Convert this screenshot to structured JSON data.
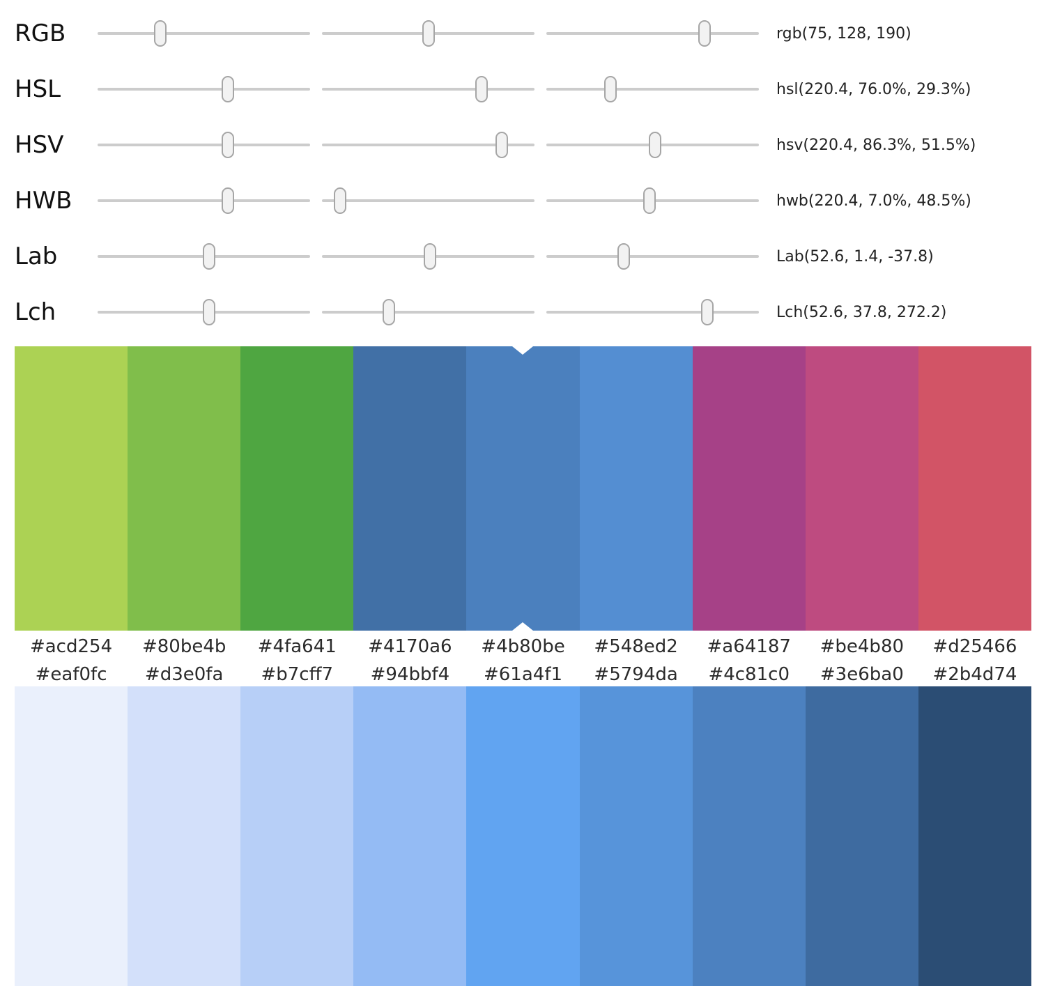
{
  "sliders": {
    "rows": [
      {
        "id": "rgb",
        "label": "RGB",
        "value": "rgb(75, 128, 190)",
        "handle_positions_pct": [
          29.4,
          50.2,
          74.5
        ]
      },
      {
        "id": "hsl",
        "label": "HSL",
        "value": "hsl(220.4, 76.0%, 29.3%)",
        "handle_positions_pct": [
          61.2,
          75.0,
          30.0
        ]
      },
      {
        "id": "hsv",
        "label": "HSV",
        "value": "hsv(220.4, 86.3%, 51.5%)",
        "handle_positions_pct": [
          61.2,
          84.5,
          51.0
        ]
      },
      {
        "id": "hwb",
        "label": "HWB",
        "value": "hwb(220.4, 7.0%, 48.5%)",
        "handle_positions_pct": [
          61.2,
          8.5,
          48.5
        ]
      },
      {
        "id": "lab",
        "label": "Lab",
        "value": "Lab(52.6, 1.4, -37.8)",
        "handle_positions_pct": [
          52.6,
          50.7,
          36.5
        ]
      },
      {
        "id": "lch",
        "label": "Lch",
        "value": "Lch(52.6, 37.8, 272.2)",
        "handle_positions_pct": [
          52.6,
          31.5,
          75.6
        ]
      }
    ]
  },
  "hue_palette": {
    "selected_index": 4,
    "swatches": [
      "#acd254",
      "#80be4b",
      "#4fa641",
      "#4170a6",
      "#4b80be",
      "#548ed2",
      "#a64187",
      "#be4b80",
      "#d25466"
    ]
  },
  "lightness_palette": {
    "swatches": [
      "#eaf0fc",
      "#d3e0fa",
      "#b7cff7",
      "#94bbf4",
      "#61a4f1",
      "#5794da",
      "#4c81c0",
      "#3e6ba0",
      "#2b4d74"
    ]
  }
}
